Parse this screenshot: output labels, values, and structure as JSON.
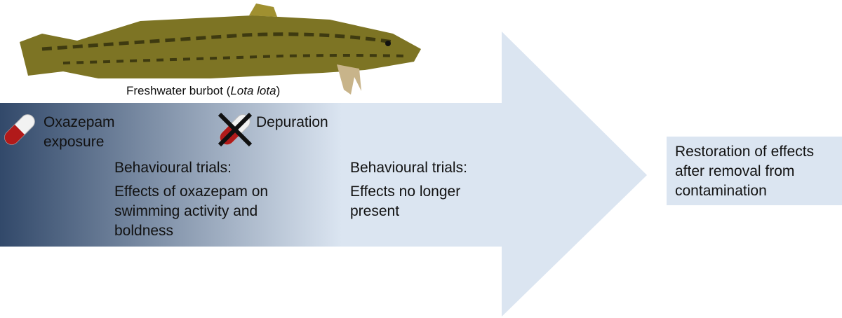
{
  "caption": {
    "prefix": "Freshwater burbot (",
    "species": "Lota lota",
    "suffix": ")"
  },
  "steps": [
    {
      "label": "Oxazepam exposure"
    },
    {
      "label": "Depuration"
    }
  ],
  "trials": [
    {
      "heading": "Behavioural trials:",
      "text": "Effects of oxazepam on swimming activity and boldness"
    },
    {
      "heading": "Behavioural trials:",
      "text": "Effects no longer present"
    }
  ],
  "outcome": "Restoration of effects after removal from contamination"
}
